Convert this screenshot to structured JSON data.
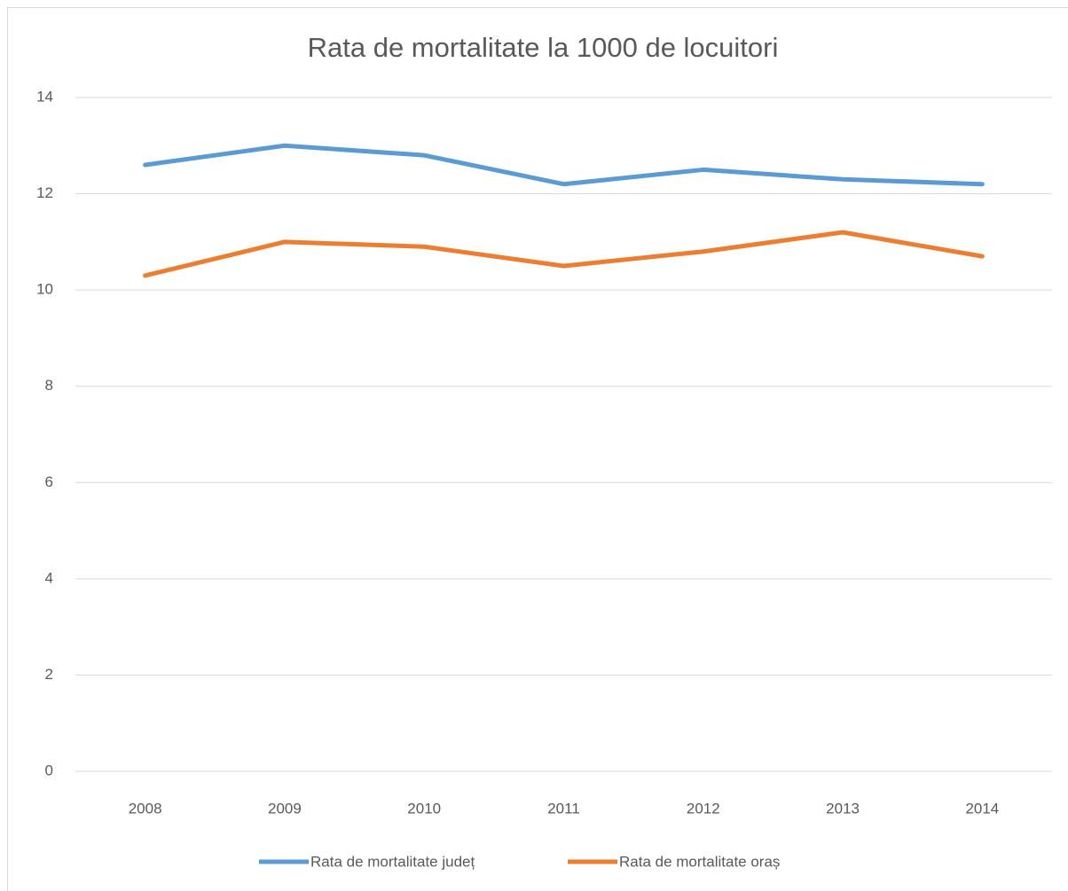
{
  "chart_data": {
    "type": "line",
    "title": "Rata de mortalitate la 1000 de locuitori",
    "categories": [
      "2008",
      "2009",
      "2010",
      "2011",
      "2012",
      "2013",
      "2014"
    ],
    "series": [
      {
        "name": "Rata de mortalitate județ",
        "color": "#5b9bd5",
        "values": [
          12.6,
          13.0,
          12.8,
          12.2,
          12.5,
          12.3,
          12.2
        ]
      },
      {
        "name": "Rata de mortalitate oraș",
        "color": "#ed7d31",
        "values": [
          10.3,
          11.0,
          10.9,
          10.5,
          10.8,
          11.2,
          10.7
        ]
      }
    ],
    "ylim": [
      0,
      14
    ],
    "yticks": [
      0,
      2,
      4,
      6,
      8,
      10,
      12,
      14
    ],
    "grid": true,
    "legend": "bottom"
  }
}
